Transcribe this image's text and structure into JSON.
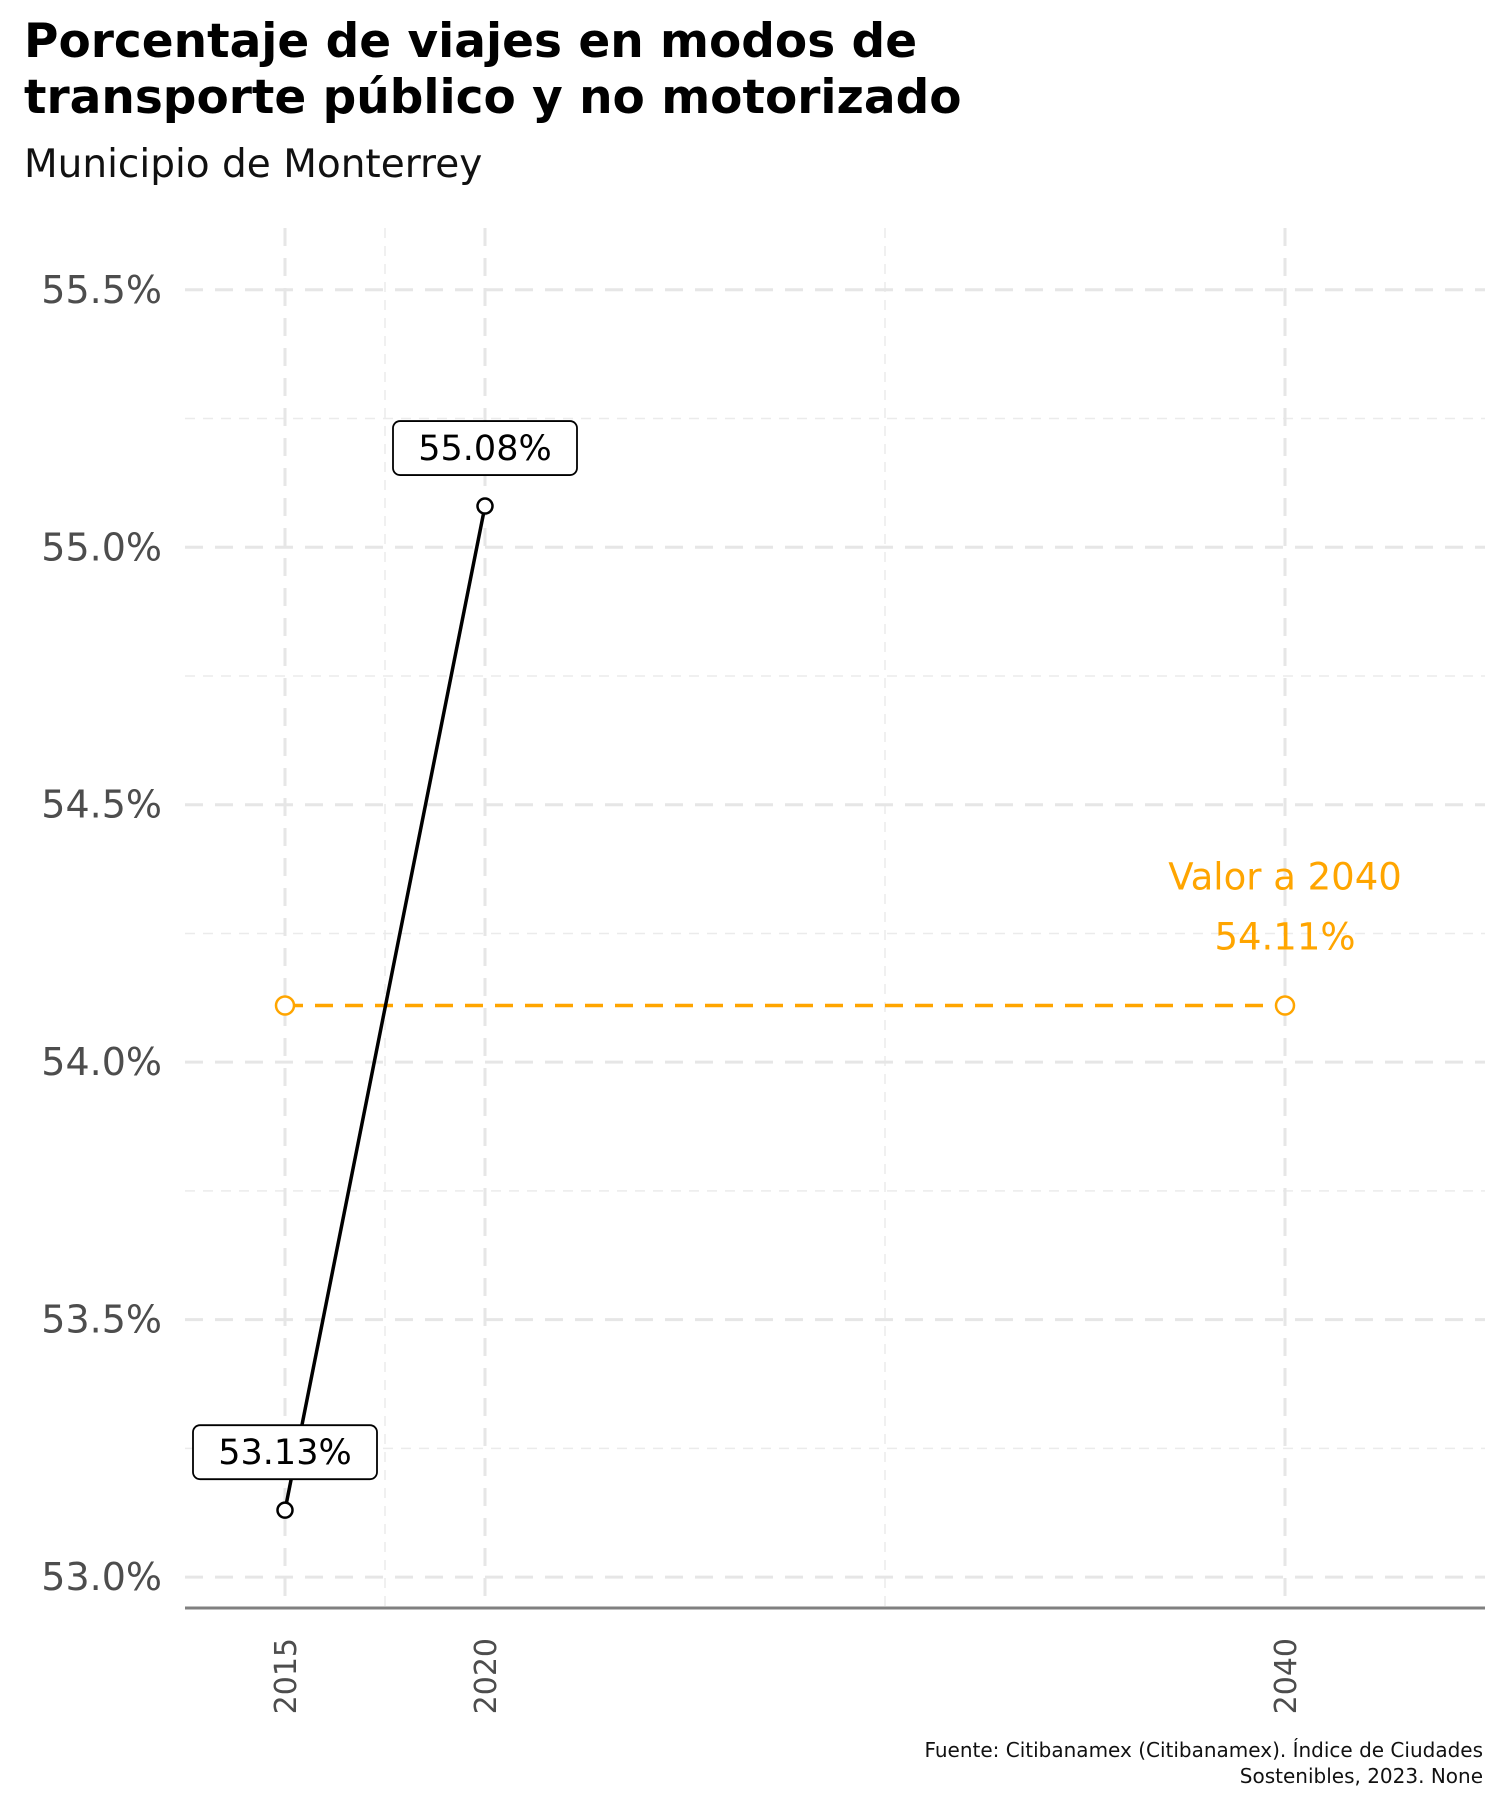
{
  "title_line1": "Porcentaje de viajes en modos de",
  "title_line2": "transporte público y no motorizado",
  "subtitle": "Municipio de Monterrey",
  "caption_line1": "Fuente: Citibanamex (Citibanamex). Índice de Ciudades",
  "caption_line2": "Sostenibles, 2023. None",
  "colors": {
    "series": "#000000",
    "target": "#FFA500",
    "grid": "#e6e6e6",
    "axis": "#808080"
  },
  "chart_data": {
    "type": "line",
    "x_ticks": [
      2015,
      2020,
      2040
    ],
    "y_ticks": [
      53.0,
      53.5,
      54.0,
      54.5,
      55.0,
      55.5
    ],
    "y_tick_labels": [
      "53.0%",
      "53.5%",
      "54.0%",
      "54.5%",
      "55.0%",
      "55.5%"
    ],
    "xlim": [
      2012.5,
      2045
    ],
    "ylim": [
      52.94,
      55.62
    ],
    "grid": true,
    "series": [
      {
        "x": [
          2015,
          2020
        ],
        "y": [
          53.13,
          55.08
        ],
        "labels": [
          "53.13%",
          "55.08%"
        ]
      }
    ],
    "target": {
      "x": [
        2015,
        2040
      ],
      "y": 54.11,
      "label_line1": "Valor a 2040",
      "label_line2": "54.11%"
    }
  }
}
